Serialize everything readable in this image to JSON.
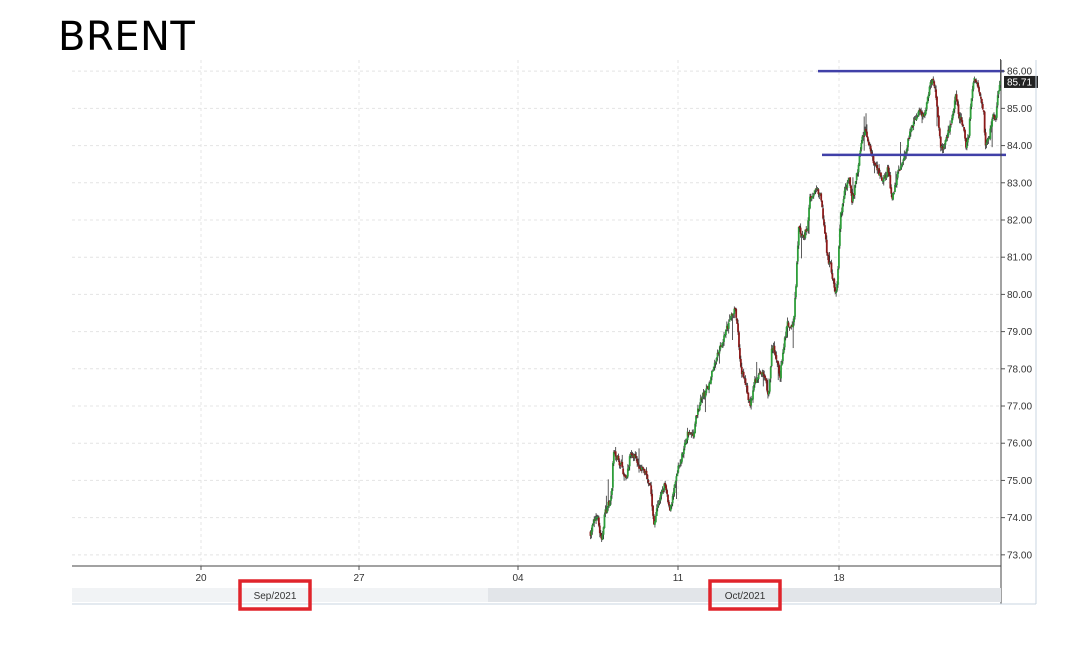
{
  "title": "BRENT",
  "chart_data": {
    "type": "candlestick",
    "title": "BRENT",
    "ylim": [
      72.7,
      86.3
    ],
    "y_ticks": [
      "73.00",
      "74.00",
      "75.00",
      "76.00",
      "77.00",
      "78.00",
      "79.00",
      "80.00",
      "81.00",
      "82.00",
      "83.00",
      "84.00",
      "85.00",
      "86.00"
    ],
    "x_ticks": [
      "20",
      "27",
      "04",
      "11",
      "18"
    ],
    "months": [
      "Sep/2021",
      "Oct/2021"
    ],
    "last_price": "85.71",
    "resistance": 86.0,
    "support": 83.75,
    "grid": true,
    "colors": {
      "up": "#2e9e3a",
      "down": "#8b1a1a",
      "wick": "#333333",
      "level": "#4040a8",
      "highlight": "#e0242b",
      "price_tag": "#222222"
    },
    "waypoints": [
      [
        0,
        73.6
      ],
      [
        15,
        74.1
      ],
      [
        25,
        73.3
      ],
      [
        32,
        74.1
      ],
      [
        48,
        74.6
      ],
      [
        52,
        75.8
      ],
      [
        60,
        75.6
      ],
      [
        70,
        75.4
      ],
      [
        80,
        75.0
      ],
      [
        90,
        75.7
      ],
      [
        100,
        75.6
      ],
      [
        110,
        75.4
      ],
      [
        125,
        75.2
      ],
      [
        135,
        74.9
      ],
      [
        143,
        73.8
      ],
      [
        150,
        74.3
      ],
      [
        160,
        74.6
      ],
      [
        168,
        74.9
      ],
      [
        178,
        74.2
      ],
      [
        185,
        74.5
      ],
      [
        198,
        75.3
      ],
      [
        210,
        75.8
      ],
      [
        220,
        76.3
      ],
      [
        232,
        76.2
      ],
      [
        240,
        76.8
      ],
      [
        250,
        77.2
      ],
      [
        262,
        77.4
      ],
      [
        275,
        77.9
      ],
      [
        285,
        78.3
      ],
      [
        295,
        78.6
      ],
      [
        305,
        79.0
      ],
      [
        315,
        79.3
      ],
      [
        325,
        79.6
      ],
      [
        330,
        79.4
      ],
      [
        340,
        78.0
      ],
      [
        350,
        77.6
      ],
      [
        360,
        77.0
      ],
      [
        370,
        77.6
      ],
      [
        380,
        77.9
      ],
      [
        395,
        77.8
      ],
      [
        402,
        77.2
      ],
      [
        410,
        78.6
      ],
      [
        418,
        78.4
      ],
      [
        428,
        77.8
      ],
      [
        436,
        78.6
      ],
      [
        445,
        79.2
      ],
      [
        452,
        79.0
      ],
      [
        460,
        79.4
      ],
      [
        465,
        80.5
      ],
      [
        470,
        81.8
      ],
      [
        480,
        81.5
      ],
      [
        490,
        81.8
      ],
      [
        495,
        82.6
      ],
      [
        502,
        82.7
      ],
      [
        512,
        82.8
      ],
      [
        520,
        82.6
      ],
      [
        528,
        81.8
      ],
      [
        535,
        81.0
      ],
      [
        542,
        80.8
      ],
      [
        550,
        80.2
      ],
      [
        556,
        80.0
      ],
      [
        560,
        81.0
      ],
      [
        565,
        82.1
      ],
      [
        575,
        82.8
      ],
      [
        585,
        83.2
      ],
      [
        590,
        82.5
      ],
      [
        598,
        82.9
      ],
      [
        606,
        83.6
      ],
      [
        612,
        84.1
      ],
      [
        620,
        84.4
      ],
      [
        630,
        84.0
      ],
      [
        640,
        83.5
      ],
      [
        650,
        83.3
      ],
      [
        660,
        83.0
      ],
      [
        672,
        83.4
      ],
      [
        680,
        82.6
      ],
      [
        688,
        82.9
      ],
      [
        694,
        83.3
      ],
      [
        704,
        83.5
      ],
      [
        715,
        84.0
      ],
      [
        725,
        84.5
      ],
      [
        735,
        84.8
      ],
      [
        745,
        84.9
      ],
      [
        755,
        84.8
      ],
      [
        765,
        85.5
      ],
      [
        772,
        85.8
      ],
      [
        778,
        85.6
      ],
      [
        785,
        84.8
      ],
      [
        790,
        84.0
      ],
      [
        797,
        83.9
      ],
      [
        808,
        84.4
      ],
      [
        816,
        84.7
      ],
      [
        825,
        85.3
      ],
      [
        832,
        84.8
      ],
      [
        840,
        84.6
      ],
      [
        848,
        84.0
      ],
      [
        854,
        84.3
      ],
      [
        858,
        85.0
      ],
      [
        866,
        85.8
      ],
      [
        874,
        85.7
      ],
      [
        880,
        85.4
      ],
      [
        888,
        84.9
      ],
      [
        892,
        84.0
      ],
      [
        900,
        84.2
      ],
      [
        908,
        84.8
      ],
      [
        914,
        84.7
      ],
      [
        920,
        85.3
      ],
      [
        926,
        85.71
      ]
    ]
  }
}
